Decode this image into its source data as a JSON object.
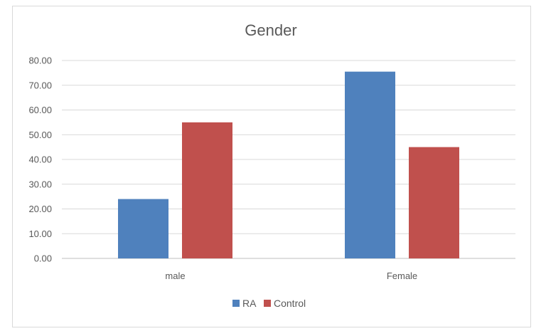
{
  "chart_data": {
    "type": "bar",
    "title": "Gender",
    "categories": [
      "male",
      "Female"
    ],
    "series": [
      {
        "name": "RA",
        "values": [
          24.0,
          75.5
        ]
      },
      {
        "name": "Control",
        "values": [
          55.0,
          45.0
        ]
      }
    ],
    "ylim": [
      0,
      80
    ],
    "yticks": [
      "0.00",
      "10.00",
      "20.00",
      "30.00",
      "40.00",
      "50.00",
      "60.00",
      "70.00",
      "80.00"
    ],
    "grid": true,
    "legend": "bottom",
    "colors": {
      "RA": "#4f81bd",
      "Control": "#c0504d"
    }
  }
}
